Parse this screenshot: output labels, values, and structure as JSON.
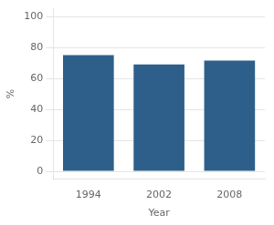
{
  "chart_data": {
    "type": "bar",
    "categories": [
      "1994",
      "2002",
      "2008"
    ],
    "values": [
      75.0,
      69.0,
      71.5
    ],
    "color": "#2E5F8A",
    "xlabel": "Year",
    "ylabel": "%",
    "ylim": [
      -5,
      105
    ],
    "yticks": [
      0,
      20,
      40,
      60,
      80,
      100
    ],
    "grid": true
  }
}
